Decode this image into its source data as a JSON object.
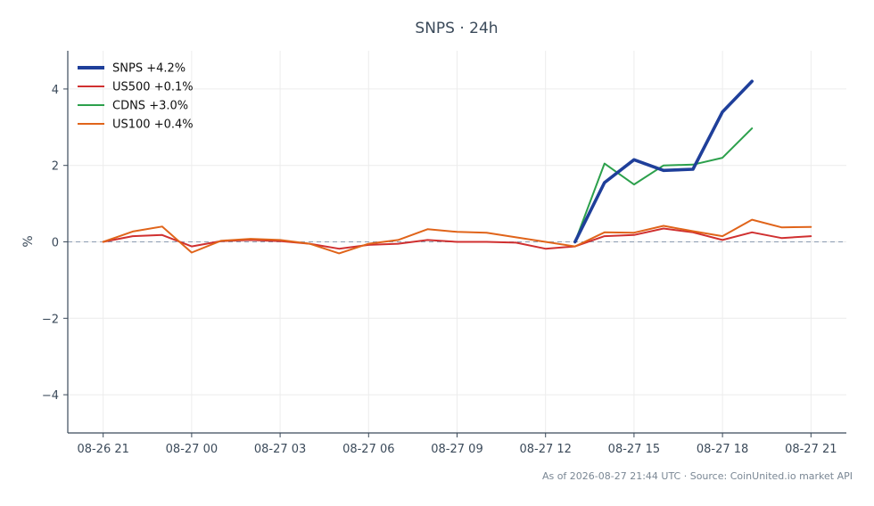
{
  "chart_data": {
    "type": "line",
    "title": "SNPS · 24h",
    "xlabel": "",
    "ylabel": "%",
    "ylim": [
      -5,
      5
    ],
    "yticks": [
      -4,
      -2,
      0,
      2,
      4
    ],
    "ytick_labels": [
      "−4",
      "−2",
      "0",
      "2",
      "4"
    ],
    "x_hours": [
      0,
      1,
      2,
      3,
      4,
      5,
      6,
      7,
      8,
      9,
      10,
      11,
      12,
      13,
      14,
      15,
      16,
      17,
      18,
      19,
      20,
      21,
      22,
      23,
      24
    ],
    "xticks": [
      0,
      3,
      6,
      9,
      12,
      15,
      18,
      21,
      24
    ],
    "xtick_labels": [
      "08-26 21",
      "08-27 00",
      "08-27 03",
      "08-27 06",
      "08-27 09",
      "08-27 12",
      "08-27 15",
      "08-27 18",
      "08-27 21"
    ],
    "xlim": [
      -1.2,
      25.2
    ],
    "grid": true,
    "legend_position": "top-left",
    "zero_line": true,
    "series": [
      {
        "name": "SNPS +4.2%",
        "color": "#1f3f9a",
        "width": "bold",
        "values": [
          null,
          null,
          null,
          null,
          null,
          null,
          null,
          null,
          null,
          null,
          null,
          null,
          null,
          null,
          null,
          null,
          0.0,
          1.55,
          2.15,
          1.87,
          1.9,
          3.4,
          4.2,
          null,
          null
        ]
      },
      {
        "name": "US500 +0.1%",
        "color": "#d03030",
        "width": "normal",
        "values": [
          0.0,
          0.15,
          0.18,
          -0.12,
          0.02,
          0.05,
          0.02,
          -0.05,
          -0.18,
          -0.08,
          -0.05,
          0.05,
          0.0,
          0.0,
          -0.02,
          -0.18,
          -0.12,
          0.15,
          0.18,
          0.35,
          0.25,
          0.05,
          0.25,
          0.1,
          0.15
        ]
      },
      {
        "name": "CDNS +3.0%",
        "color": "#2ca04c",
        "width": "normal",
        "values": [
          null,
          null,
          null,
          null,
          null,
          null,
          null,
          null,
          null,
          null,
          null,
          null,
          null,
          null,
          null,
          null,
          0.0,
          2.05,
          1.5,
          2.0,
          2.02,
          2.2,
          2.97,
          null,
          null
        ]
      },
      {
        "name": "US100 +0.4%",
        "color": "#e0641a",
        "width": "normal",
        "values": [
          0.0,
          0.27,
          0.4,
          -0.28,
          0.03,
          0.08,
          0.05,
          -0.05,
          -0.3,
          -0.05,
          0.05,
          0.33,
          0.26,
          0.24,
          0.12,
          0.0,
          -0.12,
          0.25,
          0.24,
          0.42,
          0.28,
          0.15,
          0.58,
          0.38,
          0.39
        ]
      }
    ]
  },
  "footer": {
    "source": "As of 2026-08-27 21:44 UTC · Source: CoinUnited.io market API"
  }
}
